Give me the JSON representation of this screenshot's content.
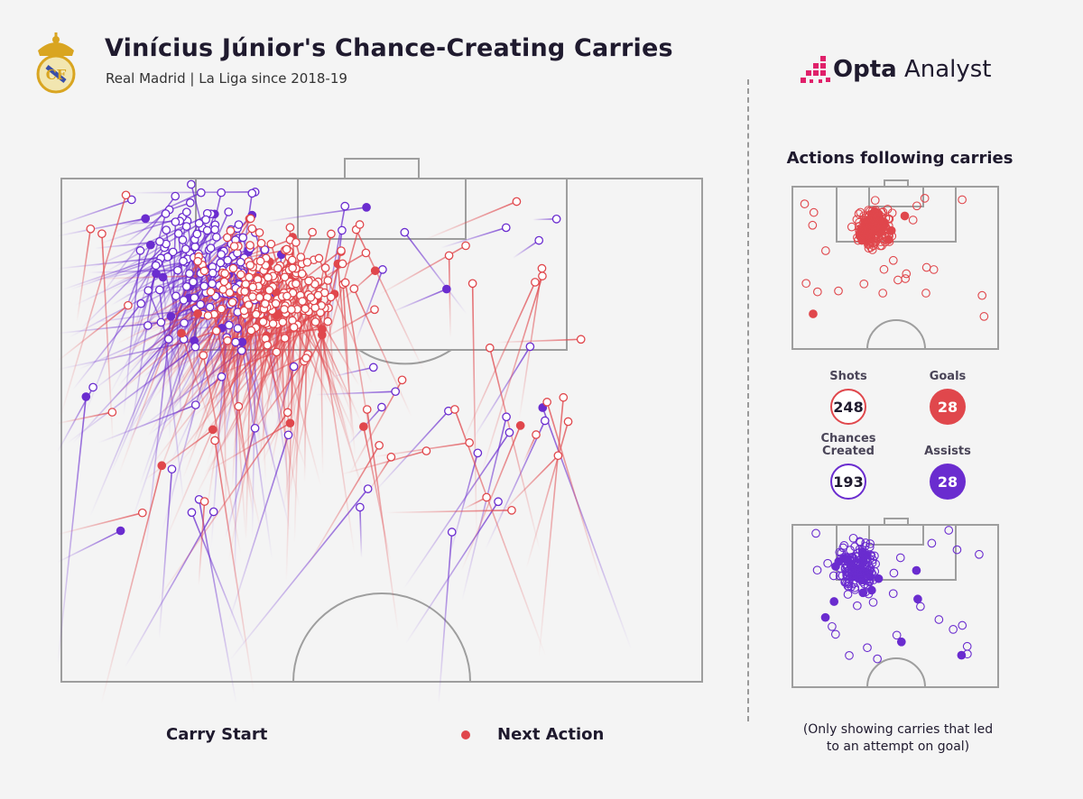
{
  "header": {
    "title": "Vinícius Júnior's Chance-Creating Carries",
    "subtitle": "Real Madrid | La Liga since 2018-19"
  },
  "brand": {
    "name_bold": "Opta",
    "name_light": "Analyst"
  },
  "panel": {
    "title": "Actions following carries",
    "stats": {
      "shots": {
        "label": "Shots",
        "value": "248"
      },
      "goals": {
        "label": "Goals",
        "value": "28"
      },
      "chances_created": {
        "label_line1": "Chances",
        "label_line2": "Created",
        "value": "193"
      },
      "assists": {
        "label": "Assists",
        "value": "28"
      }
    }
  },
  "legend": {
    "start_label": "Carry Start",
    "end_label": "Next Action"
  },
  "footnote": {
    "line1": "(Only showing carries that led",
    "line2": "to an attempt on goal)"
  },
  "colors": {
    "shot": "#e0474c",
    "chance": "#6a2ccf",
    "pitch_line": "#9e9e9e",
    "background": "#f4f4f4"
  },
  "chart_data": {
    "type": "scatter",
    "description_note_free": true,
    "seed": 7,
    "series": [
      {
        "name": "Shots",
        "count": 248,
        "filled_count": 28
      },
      {
        "name": "Chances Created",
        "count": 193,
        "filled_count": 28
      }
    ]
  }
}
